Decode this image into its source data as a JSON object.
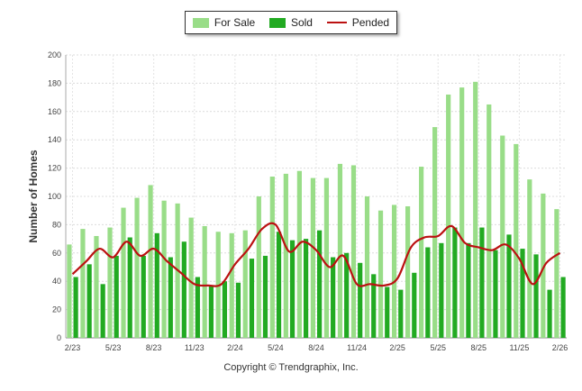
{
  "chart_data": {
    "type": "bar",
    "ylabel": "Number of Homes",
    "ylim": [
      0,
      200
    ],
    "yticks": [
      0,
      20,
      40,
      60,
      80,
      100,
      120,
      140,
      160,
      180,
      200
    ],
    "grid": true,
    "legend_position": "top-center",
    "categories": [
      "2/23",
      "3/23",
      "4/23",
      "5/23",
      "6/23",
      "7/23",
      "8/23",
      "9/23",
      "10/23",
      "11/23",
      "12/23",
      "1/24",
      "2/24",
      "3/24",
      "4/24",
      "5/24",
      "6/24",
      "7/24",
      "8/24",
      "9/24",
      "10/24",
      "11/24",
      "12/24",
      "1/25",
      "2/25",
      "3/25",
      "4/25",
      "5/25",
      "6/25",
      "7/25",
      "8/25",
      "9/25",
      "10/25",
      "11/25",
      "12/25",
      "1/26",
      "2/26"
    ],
    "xtick_labels": [
      "2/23",
      "5/23",
      "8/23",
      "11/23",
      "2/24",
      "5/24",
      "8/24",
      "11/24",
      "2/25",
      "5/25",
      "8/25",
      "11/25",
      "2/26"
    ],
    "series": [
      {
        "name": "For Sale",
        "kind": "bar",
        "color": "#99dd88",
        "values": [
          66,
          77,
          72,
          78,
          92,
          99,
          108,
          97,
          95,
          85,
          79,
          75,
          74,
          76,
          100,
          114,
          116,
          118,
          113,
          113,
          123,
          122,
          100,
          90,
          94,
          93,
          121,
          149,
          172,
          177,
          181,
          165,
          143,
          137,
          112,
          102,
          91
        ]
      },
      {
        "name": "Sold",
        "kind": "bar",
        "color": "#22aa22",
        "values": [
          43,
          52,
          38,
          58,
          71,
          58,
          74,
          57,
          68,
          43,
          37,
          40,
          39,
          56,
          58,
          75,
          69,
          70,
          76,
          57,
          60,
          53,
          45,
          36,
          34,
          46,
          64,
          67,
          78,
          67,
          78,
          62,
          73,
          63,
          59,
          34,
          43
        ]
      },
      {
        "name": "Pended",
        "kind": "line",
        "color": "#bb1111",
        "values": [
          45,
          54,
          63,
          57,
          68,
          58,
          63,
          54,
          46,
          38,
          37,
          38,
          52,
          63,
          77,
          80,
          61,
          68,
          62,
          50,
          58,
          38,
          38,
          37,
          42,
          64,
          71,
          72,
          79,
          67,
          64,
          62,
          66,
          56,
          38,
          53,
          60
        ]
      }
    ]
  },
  "copyright": "Copyright © Trendgraphix, Inc."
}
